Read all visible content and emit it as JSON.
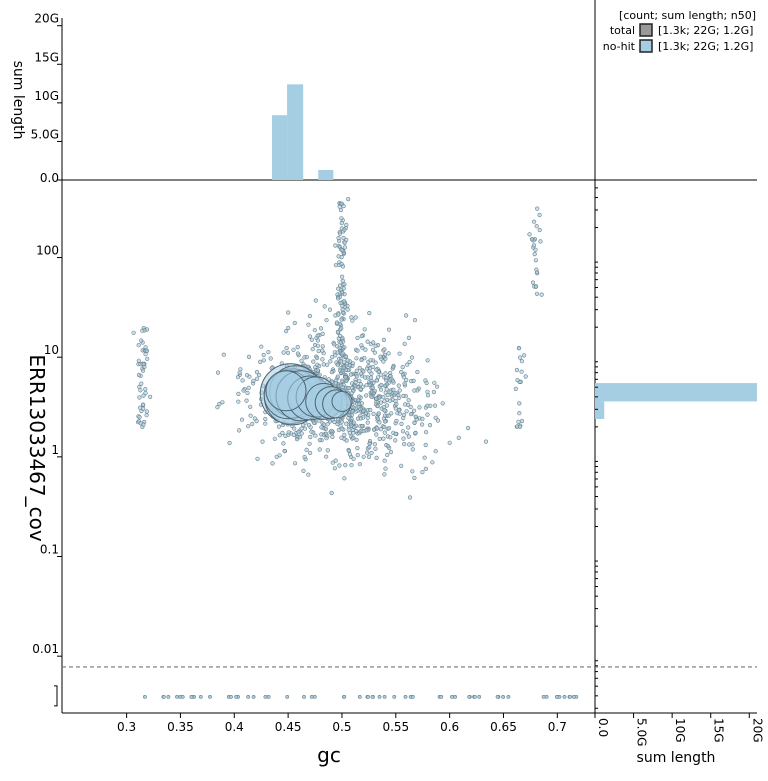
{
  "chart_data": {
    "type": "scatter",
    "xlabel": "gc",
    "ylabel": "ERR13033467_cov",
    "xlim": [
      0.24,
      0.735
    ],
    "x_ticks": [
      0.3,
      0.35,
      0.4,
      0.45,
      0.5,
      0.55,
      0.6,
      0.65,
      0.7
    ],
    "x_tick_labels": [
      "0.3",
      "0.35",
      "0.4",
      "0.45",
      "0.5",
      "0.55",
      "0.6",
      "0.65",
      "0.7"
    ],
    "y_scale": "log",
    "ylim": [
      0.00269,
      600
    ],
    "y_ticks": [
      0.01,
      0.1,
      1,
      10,
      100
    ],
    "y_tick_labels": [
      "0.01",
      "0.1",
      "1",
      "10",
      "100"
    ],
    "zero_cov_line": 0.0078,
    "zero_cov_row": 0.0039,
    "legend": {
      "header": "[count; sum length; n50]",
      "entries": [
        {
          "name": "total",
          "stats": "[1.3k; 22G; 1.2G]",
          "color": "#999999"
        },
        {
          "name": "no-hit",
          "stats": "[1.3k; 22G; 1.2G]",
          "color": "#a6cee3"
        }
      ],
      "placement": "top-right"
    },
    "big_points": [
      {
        "gc": 0.452,
        "cov": 4.3,
        "r": 30
      },
      {
        "gc": 0.454,
        "cov": 4.0,
        "r": 28
      },
      {
        "gc": 0.457,
        "cov": 4.5,
        "r": 26
      },
      {
        "gc": 0.45,
        "cov": 4.2,
        "r": 24
      },
      {
        "gc": 0.462,
        "cov": 4.1,
        "r": 25
      },
      {
        "gc": 0.47,
        "cov": 3.9,
        "r": 22
      },
      {
        "gc": 0.476,
        "cov": 4.0,
        "r": 20
      },
      {
        "gc": 0.483,
        "cov": 3.6,
        "r": 18
      },
      {
        "gc": 0.49,
        "cov": 3.5,
        "r": 16
      },
      {
        "gc": 0.495,
        "cov": 3.4,
        "r": 14
      },
      {
        "gc": 0.5,
        "cov": 3.6,
        "r": 10
      },
      {
        "gc": 0.448,
        "cov": 4.6,
        "r": 20
      }
    ],
    "top_histogram": {
      "ylabel": "sum length",
      "y_ticks": [
        0,
        5,
        10,
        15,
        20
      ],
      "y_tick_labels": [
        "0.0",
        "5.0G",
        "10G",
        "15G",
        "20G"
      ],
      "ylim": [
        0,
        21
      ],
      "bins": [
        {
          "x0": 0.435,
          "x1": 0.449,
          "value": 8.4
        },
        {
          "x0": 0.449,
          "x1": 0.464,
          "value": 12.4
        },
        {
          "x0": 0.478,
          "x1": 0.492,
          "value": 1.3
        }
      ]
    },
    "right_histogram": {
      "xlabel": "sum length",
      "x_ticks": [
        0,
        5,
        10,
        15,
        20
      ],
      "x_tick_labels": [
        "0.0",
        "5.0G",
        "10G",
        "15G",
        "20G"
      ],
      "xlim": [
        0,
        21
      ],
      "bins": [
        {
          "y0": 2.4,
          "y1": 3.6,
          "value": 1.2
        },
        {
          "y0": 3.6,
          "y1": 5.5,
          "value": 21.0
        }
      ]
    },
    "colors": {
      "point_fill": "#a6cee3",
      "point_stroke": "#6a7f8a",
      "guide_line": "#777777"
    }
  }
}
